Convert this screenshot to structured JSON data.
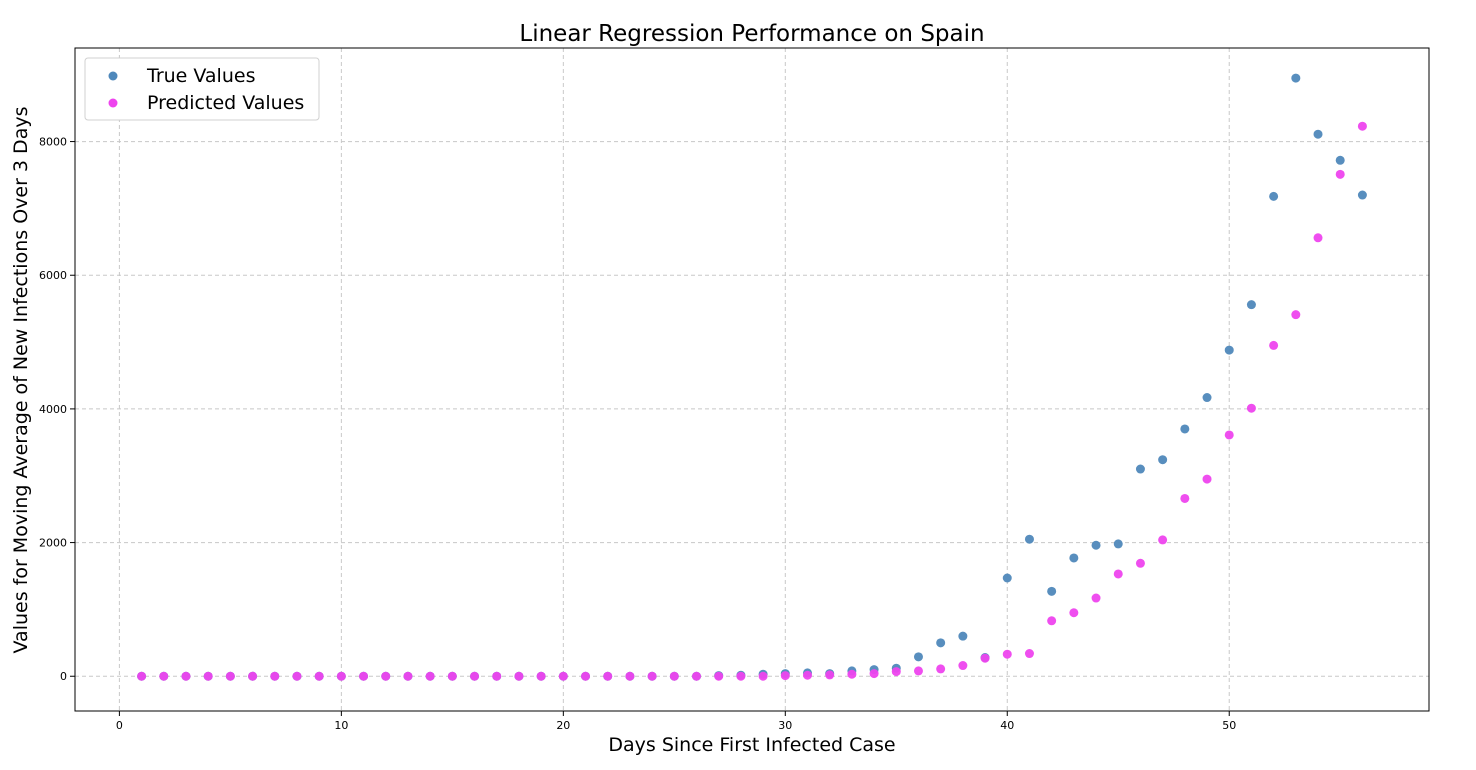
{
  "chart_data": {
    "type": "scatter",
    "title": "Linear Regression Performance on Spain",
    "xlabel": "Days Since First Infected Case",
    "ylabel": "Values for Moving Average of New Infections Over 3 Days",
    "xlim": [
      -2,
      59
    ],
    "ylim": [
      -520,
      9400
    ],
    "xticks": [
      0,
      10,
      20,
      30,
      40,
      50
    ],
    "yticks": [
      0,
      2000,
      4000,
      6000,
      8000
    ],
    "grid": true,
    "legend_position": "top-left",
    "x": [
      1,
      2,
      3,
      4,
      5,
      6,
      7,
      8,
      9,
      10,
      11,
      12,
      13,
      14,
      15,
      16,
      17,
      18,
      19,
      20,
      21,
      22,
      23,
      24,
      25,
      26,
      27,
      28,
      29,
      30,
      31,
      32,
      33,
      34,
      35,
      36,
      37,
      38,
      39,
      40,
      41,
      42,
      43,
      44,
      45,
      46,
      47,
      48,
      49,
      50,
      51,
      52,
      53,
      54,
      55,
      56
    ],
    "series": [
      {
        "name": "True Values",
        "color": "#4f88bb",
        "values": [
          0,
          0,
          0,
          0,
          0,
          0,
          0,
          0,
          0,
          0,
          0,
          0,
          0,
          0,
          0,
          0,
          0,
          0,
          0,
          0,
          0,
          0,
          0,
          0,
          0,
          0,
          10,
          15,
          30,
          40,
          50,
          40,
          80,
          100,
          120,
          290,
          500,
          600,
          280,
          1470,
          2050,
          1270,
          1770,
          1960,
          1980,
          3100,
          3240,
          3700,
          4170,
          4880,
          5560,
          7180,
          8950,
          8110,
          7720,
          7200
        ]
      },
      {
        "name": "Predicted Values",
        "color": "#ee44ee",
        "values": [
          0,
          0,
          0,
          0,
          0,
          0,
          0,
          0,
          0,
          0,
          0,
          0,
          0,
          0,
          0,
          0,
          0,
          0,
          0,
          0,
          0,
          0,
          0,
          0,
          0,
          0,
          0,
          0,
          0,
          10,
          15,
          20,
          30,
          40,
          70,
          80,
          110,
          160,
          270,
          330,
          340,
          830,
          950,
          1170,
          1530,
          1690,
          2040,
          2660,
          2950,
          3610,
          4010,
          4950,
          5410,
          6560,
          7510,
          8230
        ]
      }
    ]
  }
}
